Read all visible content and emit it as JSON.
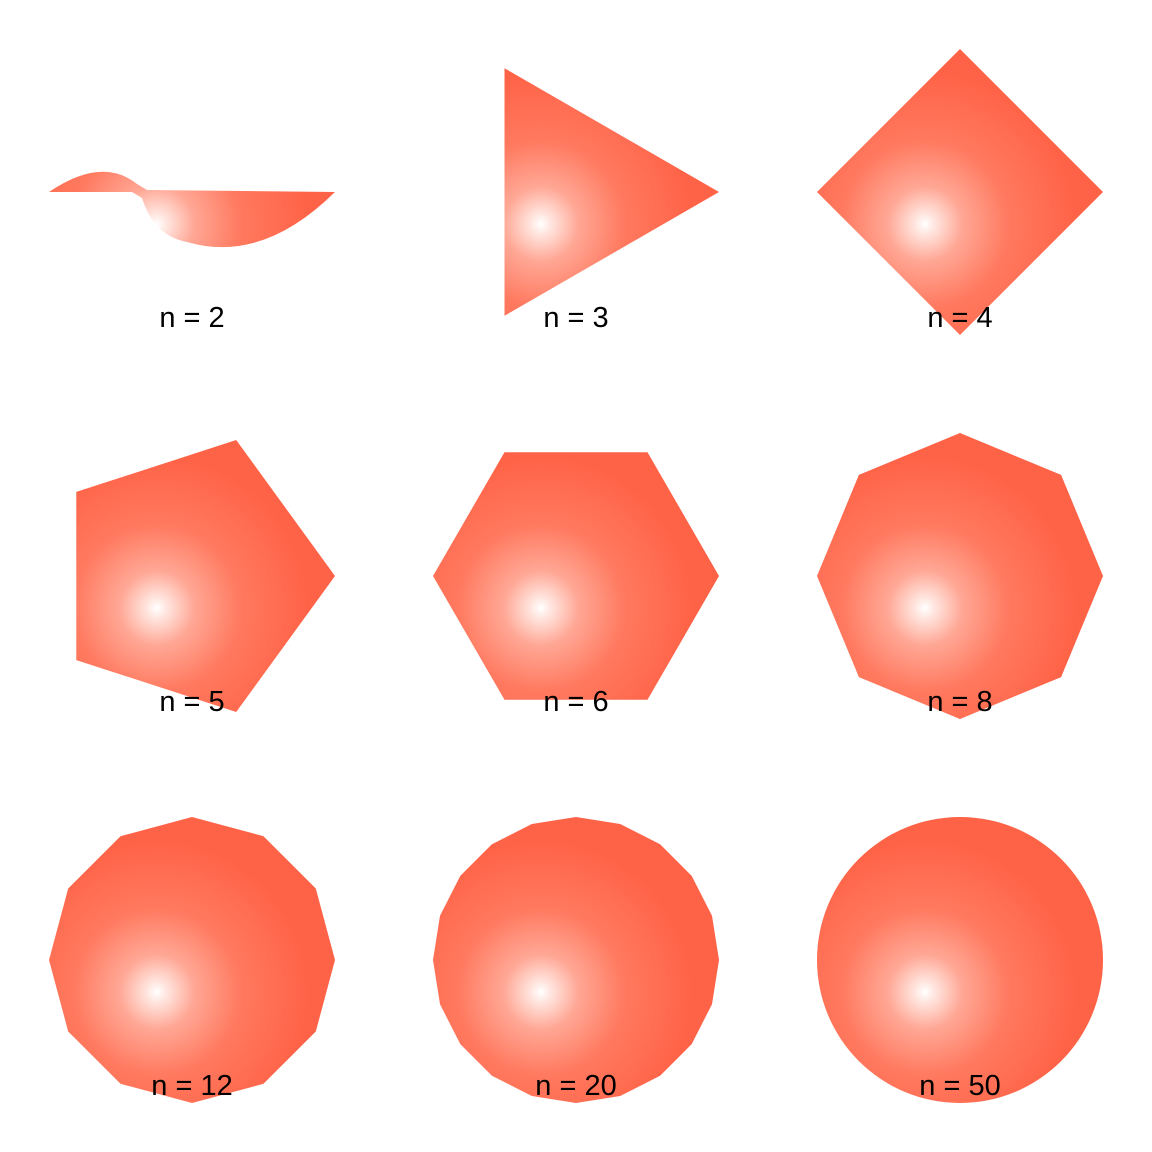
{
  "panels": [
    {
      "n": 2,
      "label": "n = 2"
    },
    {
      "n": 3,
      "label": "n = 3"
    },
    {
      "n": 4,
      "label": "n = 4"
    },
    {
      "n": 5,
      "label": "n = 5"
    },
    {
      "n": 6,
      "label": "n = 6"
    },
    {
      "n": 8,
      "label": "n = 8"
    },
    {
      "n": 12,
      "label": "n = 12"
    },
    {
      "n": 20,
      "label": "n = 20"
    },
    {
      "n": 50,
      "label": "n = 50"
    }
  ],
  "colors": {
    "fill": "#FF6347",
    "highlight": "#FFFFFF",
    "background": "#FFFFFF",
    "label": "#000000"
  }
}
